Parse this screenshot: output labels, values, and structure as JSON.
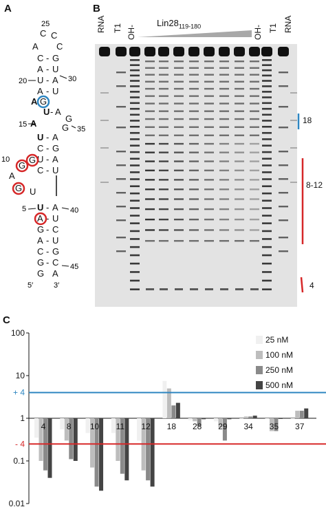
{
  "panels": {
    "a": "A",
    "b": "B",
    "c": "C"
  },
  "panel_a": {
    "nt_labels": [
      "25",
      "30",
      "20",
      "35",
      "15",
      "10",
      "5",
      "40",
      "45"
    ],
    "end5": "5′",
    "end3": "3′",
    "highlight_blue": "#2e86c1",
    "highlight_red": "#d62728"
  },
  "panel_b": {
    "lanes_left": [
      "RNA",
      "T1",
      "OH-"
    ],
    "lanes_right": [
      "OH-",
      "T1",
      "RNA"
    ],
    "protein": "Lin28",
    "protein_sub": "119-180",
    "brackets": [
      {
        "label": "18",
        "color": "#2e86c1"
      },
      {
        "label": "8-12",
        "color": "#d62728"
      },
      {
        "label": "4",
        "color": "#d62728"
      }
    ]
  },
  "chart_data": {
    "type": "bar",
    "scale": "log",
    "ylim": [
      0.01,
      100
    ],
    "yticks": [
      "100",
      "10",
      "1",
      "0.1",
      "0.01"
    ],
    "categories": [
      "4",
      "8",
      "10",
      "11",
      "12",
      "18",
      "28",
      "29",
      "34",
      "35",
      "37"
    ],
    "series": [
      {
        "name": "25 nM",
        "color": "#f0f0f0",
        "values": [
          0.35,
          0.55,
          0.45,
          0.45,
          0.3,
          7.5,
          0.9,
          0.85,
          1.0,
          1.0,
          1.0
        ]
      },
      {
        "name": "100 nM",
        "color": "#bdbdbd",
        "values": [
          0.1,
          0.3,
          0.07,
          0.1,
          0.06,
          5.0,
          0.85,
          0.6,
          1.1,
          0.5,
          1.5
        ]
      },
      {
        "name": "250 nM",
        "color": "#8a8a8a",
        "values": [
          0.06,
          0.11,
          0.025,
          0.05,
          0.035,
          2.0,
          0.65,
          0.3,
          1.1,
          0.5,
          1.5
        ]
      },
      {
        "name": "500 nM",
        "color": "#444444",
        "values": [
          0.04,
          0.1,
          0.02,
          0.035,
          0.025,
          2.3,
          0.95,
          0.95,
          1.15,
          1.0,
          1.7
        ]
      }
    ],
    "reference_lines": [
      {
        "label": "+ 4",
        "value": 4,
        "color": "#2e86c1"
      },
      {
        "label": "- 4",
        "value": 0.25,
        "color": "#d62728"
      }
    ]
  }
}
